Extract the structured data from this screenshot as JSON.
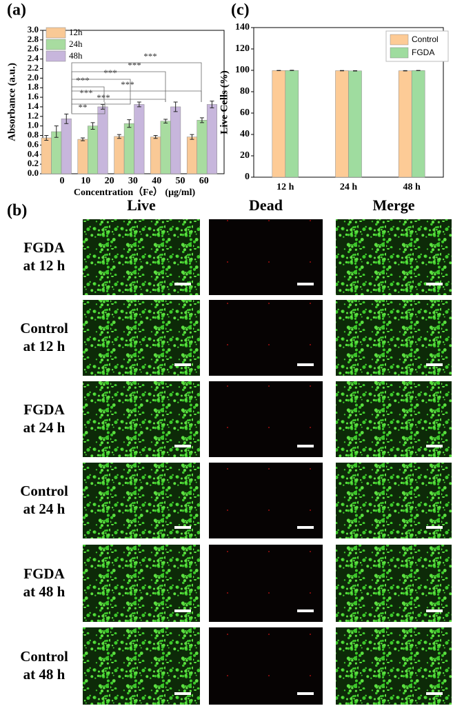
{
  "charts": [
    {
      "panel": "(a)",
      "type": "bar",
      "ylabel": "Absorbance (a.u.)",
      "xlabel": "Concentration（Fe） (μg/ml)",
      "xtick_labels": [
        "0",
        "10",
        "20",
        "30",
        "40",
        "50",
        "60"
      ],
      "categories": [
        null,
        null,
        null,
        null,
        null
      ],
      "series": [
        {
          "name": "12h",
          "color": "#f9c996",
          "values": [
            0.75,
            0.72,
            0.78,
            0.77,
            0.77
          ],
          "errors": [
            0.05,
            0.03,
            0.04,
            0.03,
            0.05
          ]
        },
        {
          "name": "24h",
          "color": "#a8dca0",
          "values": [
            0.88,
            1.0,
            1.05,
            1.1,
            1.12
          ],
          "errors": [
            0.12,
            0.07,
            0.08,
            0.04,
            0.05
          ]
        },
        {
          "name": "48h",
          "color": "#c7b6dc",
          "values": [
            1.15,
            1.4,
            1.45,
            1.4,
            1.45
          ],
          "errors": [
            0.1,
            0.05,
            0.05,
            0.1,
            0.07
          ]
        }
      ],
      "ylim": [
        0,
        3.0
      ],
      "yticks": [
        {
          "value": 0,
          "label": "0.0"
        },
        {
          "value": 0.2,
          "label": "0.2"
        },
        {
          "value": 0.4,
          "label": "0.4"
        },
        {
          "value": 0.6,
          "label": "0.6"
        },
        {
          "value": 0.8,
          "label": "0.8"
        },
        {
          "value": 1.0,
          "label": "1.0"
        },
        {
          "value": 1.2,
          "label": "1.2"
        },
        {
          "value": 1.4,
          "label": "1.4"
        },
        {
          "value": 1.6,
          "label": "1.6"
        },
        {
          "value": 1.8,
          "label": "1.8"
        },
        {
          "value": 2.0,
          "label": "2.0"
        },
        {
          "value": 2.2,
          "label": "2.2"
        },
        {
          "value": 2.4,
          "label": "2.4"
        },
        {
          "value": 2.6,
          "label": "2.6"
        },
        {
          "value": 2.8,
          "label": "2.8"
        },
        {
          "value": 3.0,
          "label": "3.0"
        }
      ],
      "annotations": [
        "**",
        "***",
        "***",
        "***",
        "***",
        "***",
        "***",
        "***"
      ]
    },
    {
      "panel": "(c)",
      "type": "bar",
      "ylabel": "Live Cells (%)",
      "categories": [
        "12 h",
        "24 h",
        "48 h"
      ],
      "series": [
        {
          "name": "Control",
          "color": "#fdcb96",
          "values": [
            99.8,
            99.7,
            99.6
          ]
        },
        {
          "name": "FGDA",
          "color": "#9fdc9f",
          "values": [
            99.9,
            99.5,
            99.8
          ]
        }
      ],
      "ylim": [
        0,
        140
      ],
      "yticks": [
        0,
        20,
        40,
        60,
        80,
        100,
        120,
        140
      ]
    }
  ],
  "panel_b": {
    "label": "(b)",
    "columns": [
      "Live",
      "Dead",
      "Merge"
    ],
    "rows": [
      [
        "FGDA",
        "at 12 h"
      ],
      [
        "Control",
        "at 12 h"
      ],
      [
        "FGDA",
        "at 24 h"
      ],
      [
        "Control",
        "at 24 h"
      ],
      [
        "FGDA",
        "at 48 h"
      ],
      [
        "Control",
        "at 48 h"
      ]
    ]
  }
}
